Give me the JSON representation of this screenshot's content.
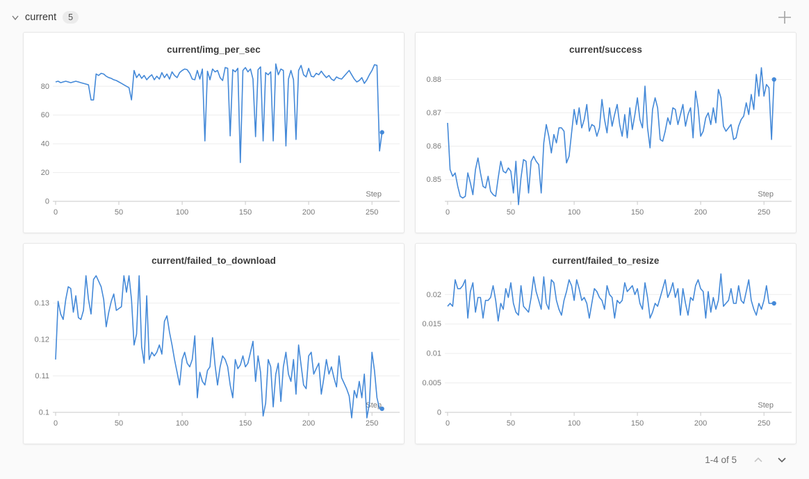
{
  "header": {
    "title": "current",
    "count": "5"
  },
  "footer": {
    "pagination": "1-4 of 5"
  },
  "colors": {
    "line": "#4489d8",
    "grid": "#ededed",
    "axis": "#c9c9c9",
    "tick_label": "#7a7a7a",
    "page_bg": "#fafafa",
    "card_bg": "#ffffff",
    "card_border": "#e6e6e6"
  },
  "chart_data": [
    {
      "type": "line",
      "title": "current/img_per_sec",
      "xlabel": "Step",
      "xlim": [
        0,
        262
      ],
      "ylim": [
        0,
        97.5
      ],
      "x_ticks": [
        0,
        50,
        100,
        150,
        200,
        250
      ],
      "y_tick_values": [
        0,
        20,
        40,
        60,
        80
      ],
      "y_tick_labels": [
        "0",
        "20",
        "40",
        "60",
        "80"
      ],
      "legend": "none",
      "end_marker": true,
      "x_start": 0,
      "x_step": 2,
      "values": [
        83,
        83.5,
        82.5,
        83,
        83.5,
        83,
        82.5,
        83,
        83.5,
        83,
        82.5,
        82,
        81.5,
        81,
        70.5,
        70.5,
        88.5,
        87.5,
        89,
        88.5,
        87,
        86,
        85.5,
        84.5,
        84,
        83,
        82,
        81,
        80,
        79,
        70.5,
        91,
        86,
        88.5,
        85.5,
        87.5,
        84.5,
        86.5,
        88,
        84.5,
        87,
        85,
        89.5,
        86,
        88.5,
        85,
        90,
        87.5,
        86,
        89.5,
        91,
        92,
        91.5,
        89,
        85,
        84.5,
        91,
        85,
        92,
        42,
        90.5,
        84.5,
        92,
        90,
        91,
        86,
        84,
        93,
        92.5,
        45.5,
        91.5,
        90,
        92.5,
        27,
        91,
        93,
        90,
        92,
        85,
        45,
        91.5,
        93.5,
        42,
        89.5,
        88,
        90,
        42,
        95.5,
        88,
        92,
        91,
        38.5,
        85,
        91,
        84.5,
        43,
        91,
        94.5,
        88,
        86.5,
        92.5,
        87,
        86.5,
        89,
        88,
        90.5,
        88,
        86,
        87.5,
        85,
        84,
        86.5,
        85.5,
        85,
        87,
        89,
        91,
        88,
        85,
        83,
        84,
        86,
        82,
        84.5,
        88,
        91,
        95,
        94.5,
        35,
        48
      ]
    },
    {
      "type": "line",
      "title": "current/success",
      "xlabel": "Step",
      "xlim": [
        0,
        262
      ],
      "ylim": [
        0.8435,
        0.8855
      ],
      "x_ticks": [
        0,
        50,
        100,
        150,
        200,
        250
      ],
      "y_tick_values": [
        0.85,
        0.86,
        0.87,
        0.88
      ],
      "y_tick_labels": [
        "0.85",
        "0.86",
        "0.87",
        "0.88"
      ],
      "legend": "none",
      "end_marker": true,
      "x_start": 0,
      "x_step": 2,
      "values": [
        0.867,
        0.853,
        0.851,
        0.852,
        0.848,
        0.845,
        0.8445,
        0.845,
        0.852,
        0.849,
        0.8455,
        0.853,
        0.8565,
        0.852,
        0.848,
        0.8475,
        0.851,
        0.8465,
        0.8455,
        0.845,
        0.8505,
        0.8555,
        0.8525,
        0.852,
        0.8535,
        0.8525,
        0.846,
        0.8555,
        0.8425,
        0.8505,
        0.856,
        0.8555,
        0.846,
        0.8555,
        0.857,
        0.8555,
        0.8545,
        0.846,
        0.861,
        0.8665,
        0.863,
        0.858,
        0.8635,
        0.861,
        0.8655,
        0.8655,
        0.8645,
        0.855,
        0.857,
        0.864,
        0.871,
        0.8665,
        0.8715,
        0.8655,
        0.868,
        0.8725,
        0.8645,
        0.8665,
        0.866,
        0.863,
        0.8655,
        0.874,
        0.868,
        0.864,
        0.8715,
        0.866,
        0.8695,
        0.8725,
        0.8665,
        0.863,
        0.8695,
        0.8625,
        0.8715,
        0.865,
        0.8695,
        0.8745,
        0.868,
        0.8655,
        0.878,
        0.8655,
        0.8595,
        0.871,
        0.8745,
        0.8715,
        0.862,
        0.8615,
        0.8645,
        0.8685,
        0.8665,
        0.8715,
        0.871,
        0.8665,
        0.8695,
        0.8725,
        0.866,
        0.8695,
        0.8715,
        0.8625,
        0.8765,
        0.8715,
        0.863,
        0.8645,
        0.8685,
        0.87,
        0.8665,
        0.8715,
        0.867,
        0.877,
        0.8745,
        0.866,
        0.8645,
        0.8655,
        0.8665,
        0.862,
        0.8625,
        0.866,
        0.868,
        0.869,
        0.873,
        0.8695,
        0.8755,
        0.871,
        0.8815,
        0.875,
        0.8835,
        0.875,
        0.8785,
        0.8775,
        0.862,
        0.88
      ]
    },
    {
      "type": "line",
      "title": "current/failed_to_download",
      "xlabel": "Step",
      "xlim": [
        0,
        262
      ],
      "ylim": [
        0.1,
        0.1385
      ],
      "x_ticks": [
        0,
        50,
        100,
        150,
        200,
        250
      ],
      "y_tick_values": [
        0.1,
        0.11,
        0.12,
        0.13
      ],
      "y_tick_labels": [
        "0.1",
        "0.11",
        "0.12",
        "0.13"
      ],
      "legend": "none",
      "end_marker": true,
      "x_start": 0,
      "x_step": 2,
      "values": [
        0.1145,
        0.1305,
        0.127,
        0.1255,
        0.131,
        0.1345,
        0.134,
        0.1275,
        0.132,
        0.126,
        0.1255,
        0.128,
        0.1375,
        0.131,
        0.127,
        0.1365,
        0.1375,
        0.136,
        0.1345,
        0.131,
        0.1235,
        0.1275,
        0.1305,
        0.1325,
        0.128,
        0.1285,
        0.129,
        0.1375,
        0.133,
        0.1375,
        0.131,
        0.1185,
        0.1215,
        0.1375,
        0.118,
        0.1135,
        0.132,
        0.1145,
        0.1165,
        0.1155,
        0.1165,
        0.1185,
        0.116,
        0.125,
        0.1265,
        0.122,
        0.1185,
        0.1145,
        0.111,
        0.1075,
        0.1145,
        0.1165,
        0.1135,
        0.1125,
        0.1145,
        0.121,
        0.104,
        0.111,
        0.1085,
        0.1075,
        0.1115,
        0.1125,
        0.1205,
        0.113,
        0.1075,
        0.1125,
        0.1155,
        0.1145,
        0.1125,
        0.1075,
        0.104,
        0.1145,
        0.112,
        0.113,
        0.1155,
        0.1125,
        0.1135,
        0.1165,
        0.1195,
        0.1085,
        0.1155,
        0.111,
        0.099,
        0.1025,
        0.1145,
        0.1125,
        0.1015,
        0.1105,
        0.1135,
        0.103,
        0.1125,
        0.1165,
        0.1105,
        0.1085,
        0.1145,
        0.105,
        0.1185,
        0.113,
        0.1075,
        0.1065,
        0.1155,
        0.1165,
        0.1105,
        0.112,
        0.1135,
        0.105,
        0.1095,
        0.1145,
        0.1105,
        0.1125,
        0.1095,
        0.107,
        0.1155,
        0.1095,
        0.108,
        0.1065,
        0.1045,
        0.0985,
        0.106,
        0.104,
        0.1085,
        0.104,
        0.1105,
        0.0985,
        0.1025,
        0.1165,
        0.1115,
        0.104,
        0.101,
        0.101
      ]
    },
    {
      "type": "line",
      "title": "current/failed_to_resize",
      "xlabel": "Step",
      "xlim": [
        0,
        262
      ],
      "ylim": [
        0,
        0.0238
      ],
      "x_ticks": [
        0,
        50,
        100,
        150,
        200,
        250
      ],
      "y_tick_values": [
        0,
        0.005,
        0.01,
        0.015,
        0.02
      ],
      "y_tick_labels": [
        "0",
        "0.005",
        "0.01",
        "0.015",
        "0.02"
      ],
      "legend": "none",
      "end_marker": true,
      "x_start": 0,
      "x_step": 2,
      "values": [
        0.018,
        0.0185,
        0.018,
        0.0225,
        0.021,
        0.021,
        0.0215,
        0.0225,
        0.016,
        0.0205,
        0.022,
        0.017,
        0.0195,
        0.0195,
        0.016,
        0.019,
        0.019,
        0.0195,
        0.0215,
        0.019,
        0.0155,
        0.0185,
        0.0175,
        0.021,
        0.0195,
        0.022,
        0.0185,
        0.017,
        0.0165,
        0.0215,
        0.018,
        0.0175,
        0.017,
        0.0195,
        0.023,
        0.0205,
        0.019,
        0.0175,
        0.023,
        0.0185,
        0.0175,
        0.0225,
        0.022,
        0.019,
        0.0175,
        0.0165,
        0.019,
        0.0205,
        0.0225,
        0.0215,
        0.019,
        0.0225,
        0.021,
        0.019,
        0.0195,
        0.0185,
        0.016,
        0.0185,
        0.021,
        0.0205,
        0.0195,
        0.019,
        0.0175,
        0.0215,
        0.02,
        0.0195,
        0.016,
        0.019,
        0.0185,
        0.019,
        0.022,
        0.0205,
        0.021,
        0.0215,
        0.02,
        0.021,
        0.0185,
        0.0175,
        0.022,
        0.0195,
        0.016,
        0.017,
        0.0185,
        0.018,
        0.0195,
        0.021,
        0.0225,
        0.0195,
        0.0205,
        0.022,
        0.0195,
        0.021,
        0.0165,
        0.021,
        0.0185,
        0.0165,
        0.0195,
        0.019,
        0.0215,
        0.0225,
        0.021,
        0.0205,
        0.016,
        0.0205,
        0.017,
        0.0195,
        0.0175,
        0.019,
        0.0235,
        0.018,
        0.0185,
        0.019,
        0.021,
        0.0185,
        0.0185,
        0.0215,
        0.019,
        0.0185,
        0.0205,
        0.0225,
        0.019,
        0.0175,
        0.0165,
        0.0185,
        0.0175,
        0.019,
        0.0215,
        0.0185,
        0.0185,
        0.0185
      ]
    }
  ]
}
